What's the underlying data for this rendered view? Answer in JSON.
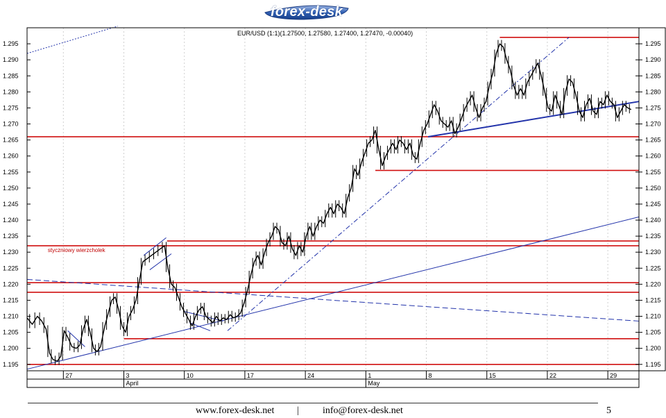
{
  "logo": {
    "text": "forex-desk"
  },
  "chart_data": {
    "type": "candlestick",
    "title": "EUR/USD (1:1)(1.27500, 1.27580, 1.27400, 1.27470, -0.00040)",
    "ylim": [
      1.193,
      1.3
    ],
    "y_ticks": [
      1.195,
      1.2,
      1.205,
      1.21,
      1.215,
      1.22,
      1.225,
      1.23,
      1.235,
      1.24,
      1.245,
      1.25,
      1.255,
      1.26,
      1.265,
      1.27,
      1.275,
      1.28,
      1.285,
      1.29,
      1.295
    ],
    "y_tick_labels": [
      "1.195",
      "1.200",
      "1.205",
      "1.210",
      "1.215",
      "1.220",
      "1.225",
      "1.230",
      "1.235",
      "1.240",
      "1.245",
      "1.250",
      "1.255",
      "1.260",
      "1.265",
      "1.270",
      "1.275",
      "1.280",
      "1.285",
      "1.290",
      "1.295"
    ],
    "x_labels": [
      {
        "label": "27",
        "day": 0
      },
      {
        "label": "3",
        "day": 7
      },
      {
        "label": "10",
        "day": 14
      },
      {
        "label": "17",
        "day": 21
      },
      {
        "label": "24",
        "day": 28
      },
      {
        "label": "1",
        "day": 35
      },
      {
        "label": "8",
        "day": 42
      },
      {
        "label": "15",
        "day": 49
      },
      {
        "label": "22",
        "day": 56
      },
      {
        "label": "29",
        "day": 63
      }
    ],
    "month_labels": [
      {
        "label": "April",
        "day": 7
      },
      {
        "label": "May",
        "day": 35
      }
    ],
    "xlim_days": [
      -4.2,
      66.6
    ],
    "price_path": [
      [
        -4.2,
        1.2095
      ],
      [
        -3.6,
        1.2075
      ],
      [
        -3.0,
        1.21
      ],
      [
        -2.5,
        1.2085
      ],
      [
        -2.0,
        1.206
      ],
      [
        -1.6,
        1.1985
      ],
      [
        -1.2,
        1.1965
      ],
      [
        -0.7,
        1.196
      ],
      [
        -0.3,
        1.1975
      ],
      [
        0.1,
        1.2055
      ],
      [
        0.5,
        1.2035
      ],
      [
        1.0,
        1.2005
      ],
      [
        1.5,
        1.2
      ],
      [
        1.9,
        1.201
      ],
      [
        2.3,
        1.206
      ],
      [
        2.7,
        1.209
      ],
      [
        3.1,
        1.205
      ],
      [
        3.5,
        1.2
      ],
      [
        3.9,
        1.199
      ],
      [
        4.3,
        1.2005
      ],
      [
        4.8,
        1.207
      ],
      [
        5.2,
        1.211
      ],
      [
        5.6,
        1.215
      ],
      [
        6.0,
        1.216
      ],
      [
        6.4,
        1.212
      ],
      [
        6.8,
        1.207
      ],
      [
        7.2,
        1.205
      ],
      [
        7.6,
        1.21
      ],
      [
        8.0,
        1.212
      ],
      [
        8.4,
        1.215
      ],
      [
        8.8,
        1.221
      ],
      [
        9.2,
        1.227
      ],
      [
        9.7,
        1.228
      ],
      [
        10.2,
        1.229
      ],
      [
        10.7,
        1.23
      ],
      [
        11.2,
        1.231
      ],
      [
        11.7,
        1.232
      ],
      [
        12.1,
        1.225
      ],
      [
        12.5,
        1.22
      ],
      [
        12.9,
        1.219
      ],
      [
        13.3,
        1.216
      ],
      [
        13.7,
        1.213
      ],
      [
        14.1,
        1.211
      ],
      [
        14.5,
        1.209
      ],
      [
        14.9,
        1.207
      ],
      [
        15.3,
        1.21
      ],
      [
        15.7,
        1.212
      ],
      [
        16.1,
        1.213
      ],
      [
        16.5,
        1.21
      ],
      [
        16.9,
        1.209
      ],
      [
        17.3,
        1.208
      ],
      [
        17.7,
        1.21
      ],
      [
        18.1,
        1.2085
      ],
      [
        18.5,
        1.2095
      ],
      [
        18.9,
        1.209
      ],
      [
        19.3,
        1.2105
      ],
      [
        19.7,
        1.2095
      ],
      [
        20.1,
        1.21
      ],
      [
        20.5,
        1.211
      ],
      [
        20.9,
        1.214
      ],
      [
        21.3,
        1.218
      ],
      [
        21.7,
        1.223
      ],
      [
        22.1,
        1.227
      ],
      [
        22.5,
        1.229
      ],
      [
        22.9,
        1.226
      ],
      [
        23.3,
        1.23
      ],
      [
        23.7,
        1.233
      ],
      [
        24.1,
        1.235
      ],
      [
        24.5,
        1.238
      ],
      [
        24.9,
        1.237
      ],
      [
        25.3,
        1.233
      ],
      [
        25.7,
        1.232
      ],
      [
        26.1,
        1.235
      ],
      [
        26.5,
        1.231
      ],
      [
        26.9,
        1.229
      ],
      [
        27.3,
        1.232
      ],
      [
        27.7,
        1.23
      ],
      [
        28.1,
        1.235
      ],
      [
        28.5,
        1.238
      ],
      [
        28.9,
        1.235
      ],
      [
        29.3,
        1.238
      ],
      [
        29.7,
        1.24
      ],
      [
        30.1,
        1.239
      ],
      [
        30.5,
        1.242
      ],
      [
        30.9,
        1.244
      ],
      [
        31.3,
        1.242
      ],
      [
        31.7,
        1.245
      ],
      [
        32.1,
        1.244
      ],
      [
        32.5,
        1.242
      ],
      [
        32.9,
        1.247
      ],
      [
        33.3,
        1.25
      ],
      [
        33.7,
        1.256
      ],
      [
        34.1,
        1.254
      ],
      [
        34.5,
        1.258
      ],
      [
        34.9,
        1.261
      ],
      [
        35.3,
        1.264
      ],
      [
        35.7,
        1.265
      ],
      [
        36.1,
        1.268
      ],
      [
        36.5,
        1.262
      ],
      [
        36.9,
        1.257
      ],
      [
        37.3,
        1.26
      ],
      [
        37.7,
        1.262
      ],
      [
        38.1,
        1.264
      ],
      [
        38.5,
        1.262
      ],
      [
        38.9,
        1.265
      ],
      [
        39.3,
        1.264
      ],
      [
        39.7,
        1.262
      ],
      [
        40.1,
        1.264
      ],
      [
        40.5,
        1.26
      ],
      [
        40.9,
        1.259
      ],
      [
        41.3,
        1.264
      ],
      [
        41.7,
        1.268
      ],
      [
        42.1,
        1.27
      ],
      [
        42.5,
        1.273
      ],
      [
        42.9,
        1.276
      ],
      [
        43.3,
        1.274
      ],
      [
        43.7,
        1.271
      ],
      [
        44.1,
        1.27
      ],
      [
        44.5,
        1.269
      ],
      [
        44.9,
        1.271
      ],
      [
        45.3,
        1.267
      ],
      [
        45.7,
        1.269
      ],
      [
        46.1,
        1.272
      ],
      [
        46.5,
        1.275
      ],
      [
        46.9,
        1.277
      ],
      [
        47.3,
        1.279
      ],
      [
        47.7,
        1.275
      ],
      [
        48.1,
        1.272
      ],
      [
        48.5,
        1.275
      ],
      [
        48.9,
        1.277
      ],
      [
        49.3,
        1.282
      ],
      [
        49.7,
        1.286
      ],
      [
        50.1,
        1.292
      ],
      [
        50.5,
        1.295
      ],
      [
        50.9,
        1.294
      ],
      [
        51.3,
        1.29
      ],
      [
        51.7,
        1.287
      ],
      [
        52.1,
        1.282
      ],
      [
        52.5,
        1.279
      ],
      [
        52.9,
        1.281
      ],
      [
        53.3,
        1.279
      ],
      [
        53.7,
        1.283
      ],
      [
        54.1,
        1.285
      ],
      [
        54.5,
        1.287
      ],
      [
        54.9,
        1.289
      ],
      [
        55.3,
        1.285
      ],
      [
        55.7,
        1.28
      ],
      [
        56.1,
        1.275
      ],
      [
        56.5,
        1.274
      ],
      [
        56.9,
        1.279
      ],
      [
        57.3,
        1.276
      ],
      [
        57.7,
        1.273
      ],
      [
        58.1,
        1.28
      ],
      [
        58.5,
        1.284
      ],
      [
        58.9,
        1.283
      ],
      [
        59.3,
        1.279
      ],
      [
        59.7,
        1.274
      ],
      [
        60.1,
        1.272
      ],
      [
        60.5,
        1.276
      ],
      [
        60.9,
        1.278
      ],
      [
        61.3,
        1.274
      ],
      [
        61.7,
        1.273
      ],
      [
        62.1,
        1.277
      ],
      [
        62.5,
        1.276
      ],
      [
        62.9,
        1.279
      ],
      [
        63.3,
        1.277
      ],
      [
        63.7,
        1.276
      ],
      [
        64.1,
        1.272
      ],
      [
        64.5,
        1.274
      ],
      [
        64.9,
        1.276
      ],
      [
        65.3,
        1.275
      ],
      [
        65.7,
        1.2745
      ]
    ],
    "horizontal_levels": [
      {
        "y": 1.297,
        "x_from": 50.5,
        "x_to": 72
      },
      {
        "y": 1.266,
        "x_from": -10,
        "x_to": 72
      },
      {
        "y": 1.2555,
        "x_from": 36.1,
        "x_to": 72
      },
      {
        "y": 1.2335,
        "x_from": 12.0,
        "x_to": 72
      },
      {
        "y": 1.232,
        "x_from": -10,
        "x_to": 72
      },
      {
        "y": 1.2205,
        "x_from": -10,
        "x_to": 72
      },
      {
        "y": 1.2175,
        "x_from": -10,
        "x_to": 72
      },
      {
        "y": 1.203,
        "x_from": 7.0,
        "x_to": 72
      },
      {
        "y": 1.195,
        "x_from": -10,
        "x_to": 72
      }
    ],
    "trend_lines": [
      {
        "style": "solid",
        "color": "#2233aa",
        "width": 1,
        "from": [
          -4.2,
          1.1935
        ],
        "to": [
          66.6,
          1.241
        ]
      },
      {
        "style": "solid",
        "color": "#2233aa",
        "width": 2,
        "from": [
          42.2,
          1.266
        ],
        "to": [
          66.6,
          1.277
        ]
      },
      {
        "style": "dashed",
        "color": "#2233aa",
        "width": 1,
        "from": [
          -4.2,
          1.2215
        ],
        "to": [
          66.6,
          1.2085
        ]
      },
      {
        "style": "dashdot",
        "color": "#2233aa",
        "width": 1,
        "from": [
          19.0,
          1.2055
        ],
        "to": [
          58.5,
          1.297
        ]
      },
      {
        "style": "dotted",
        "color": "#2233aa",
        "width": 1,
        "from": [
          -4.2,
          1.292
        ],
        "to": [
          6.3,
          1.3005
        ]
      },
      {
        "style": "solid",
        "color": "#2233aa",
        "width": 1,
        "from": [
          0.5,
          1.2055
        ],
        "to": [
          2.5,
          1.2005
        ]
      },
      {
        "style": "solid",
        "color": "#2233aa",
        "width": 1,
        "from": [
          9.3,
          1.229
        ],
        "to": [
          11.9,
          1.2345
        ]
      },
      {
        "style": "solid",
        "color": "#2233aa",
        "width": 1,
        "from": [
          10.0,
          1.2245
        ],
        "to": [
          12.5,
          1.2295
        ]
      },
      {
        "style": "solid",
        "color": "#2233aa",
        "width": 1,
        "from": [
          14.0,
          1.2115
        ],
        "to": [
          18.5,
          1.2085
        ]
      },
      {
        "style": "solid",
        "color": "#2233aa",
        "width": 1,
        "from": [
          14.6,
          1.208
        ],
        "to": [
          17.0,
          1.2055
        ]
      }
    ],
    "annotations": [
      {
        "text": "styczniowy wierzcholek",
        "x": -1.8,
        "y": 1.23
      }
    ]
  },
  "footer": {
    "website": "www.forex-desk.net",
    "separator": "|",
    "email": "info@forex-desk.net",
    "page_number": "5"
  }
}
